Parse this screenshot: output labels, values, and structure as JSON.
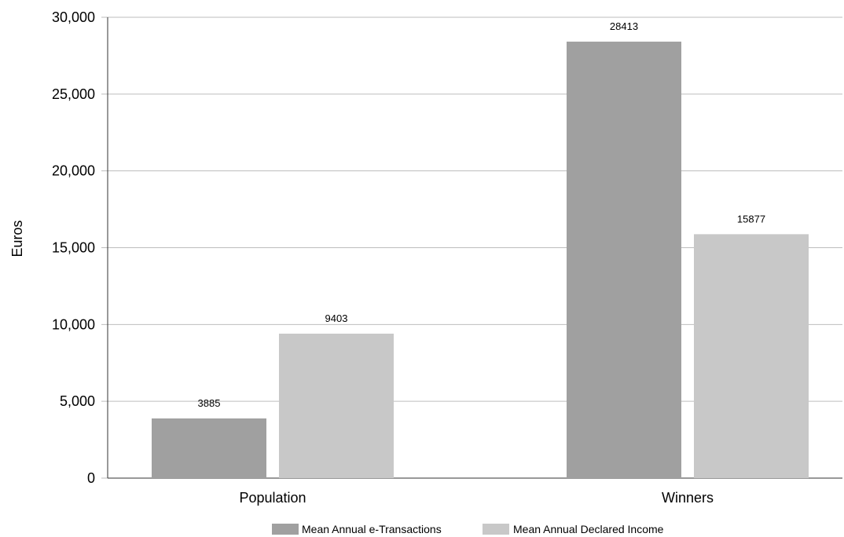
{
  "chart_data": {
    "type": "bar",
    "title": "",
    "xlabel": "",
    "ylabel": "Euros",
    "categories": [
      "Population",
      "Winners"
    ],
    "series": [
      {
        "name": "Mean Annual e-Transactions",
        "values": [
          3885,
          28413
        ],
        "color": "#a0a0a0"
      },
      {
        "name": "Mean Annual Declared Income",
        "values": [
          9403,
          15877
        ],
        "color": "#c8c8c8"
      }
    ],
    "ylim": [
      0,
      30000
    ],
    "yticks": [
      0,
      5000,
      10000,
      15000,
      20000,
      25000,
      30000
    ],
    "ytick_labels": [
      "0",
      "5,000",
      "10,000",
      "15,000",
      "20,000",
      "25,000",
      "30,000"
    ],
    "data_labels": [
      [
        "3885",
        "28413"
      ],
      [
        "9403",
        "15877"
      ]
    ],
    "grid": true,
    "legend_position": "bottom"
  }
}
